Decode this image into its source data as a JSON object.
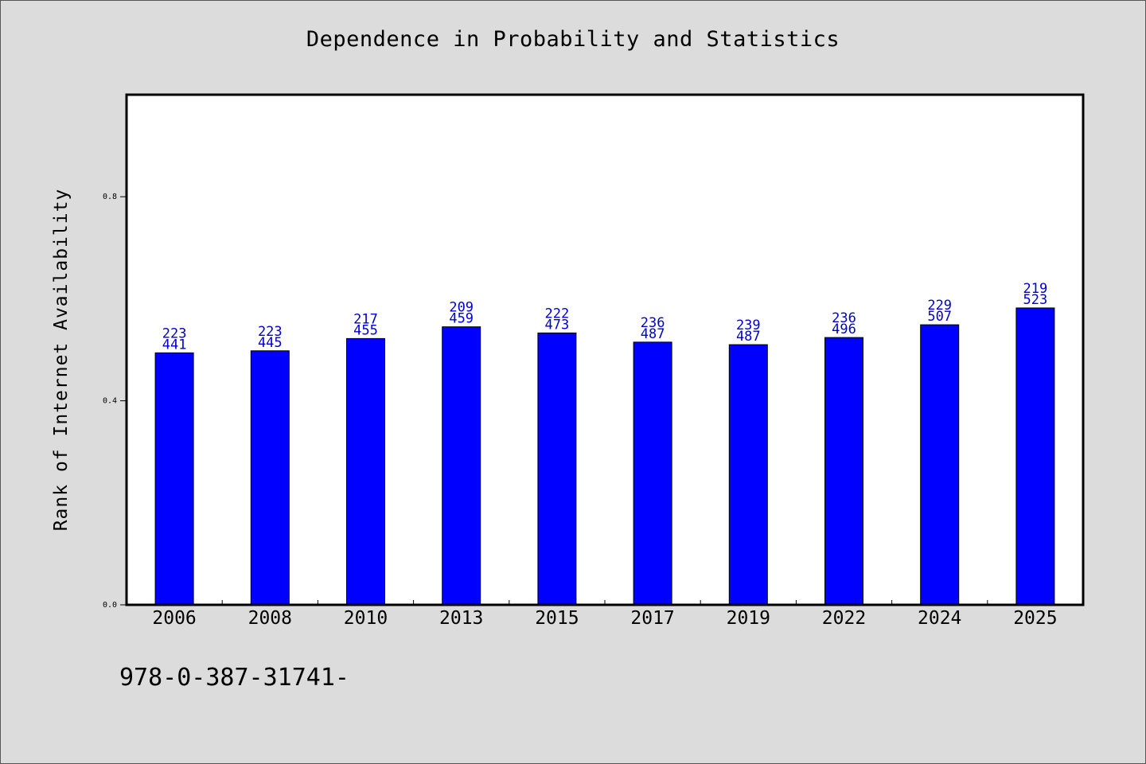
{
  "chart_data": {
    "type": "bar",
    "title": "Dependence in Probability and Statistics",
    "xlabel": "",
    "ylabel": "Rank of Internet Availability",
    "categories": [
      "2006",
      "2008",
      "2010",
      "2013",
      "2015",
      "2017",
      "2019",
      "2022",
      "2024",
      "2025"
    ],
    "values": [
      0.494,
      0.498,
      0.522,
      0.545,
      0.533,
      0.515,
      0.51,
      0.524,
      0.549,
      0.582
    ],
    "labels_top": [
      "223",
      "223",
      "217",
      "209",
      "222",
      "236",
      "239",
      "236",
      "229",
      "219"
    ],
    "labels_bottom": [
      "441",
      "445",
      "455",
      "459",
      "473",
      "487",
      "487",
      "496",
      "507",
      "523"
    ],
    "yticks": [
      "0.0",
      "0.4",
      "0.8"
    ],
    "ytick_values": [
      0.0,
      0.4,
      0.8
    ],
    "ylim": [
      0,
      1.0
    ],
    "grid": false,
    "colors": {
      "bar": "#0000ff",
      "label": "#0000cc",
      "background": "#dcdcdc",
      "plot": "#ffffff"
    }
  },
  "footer_text": "978-0-387-31741-"
}
